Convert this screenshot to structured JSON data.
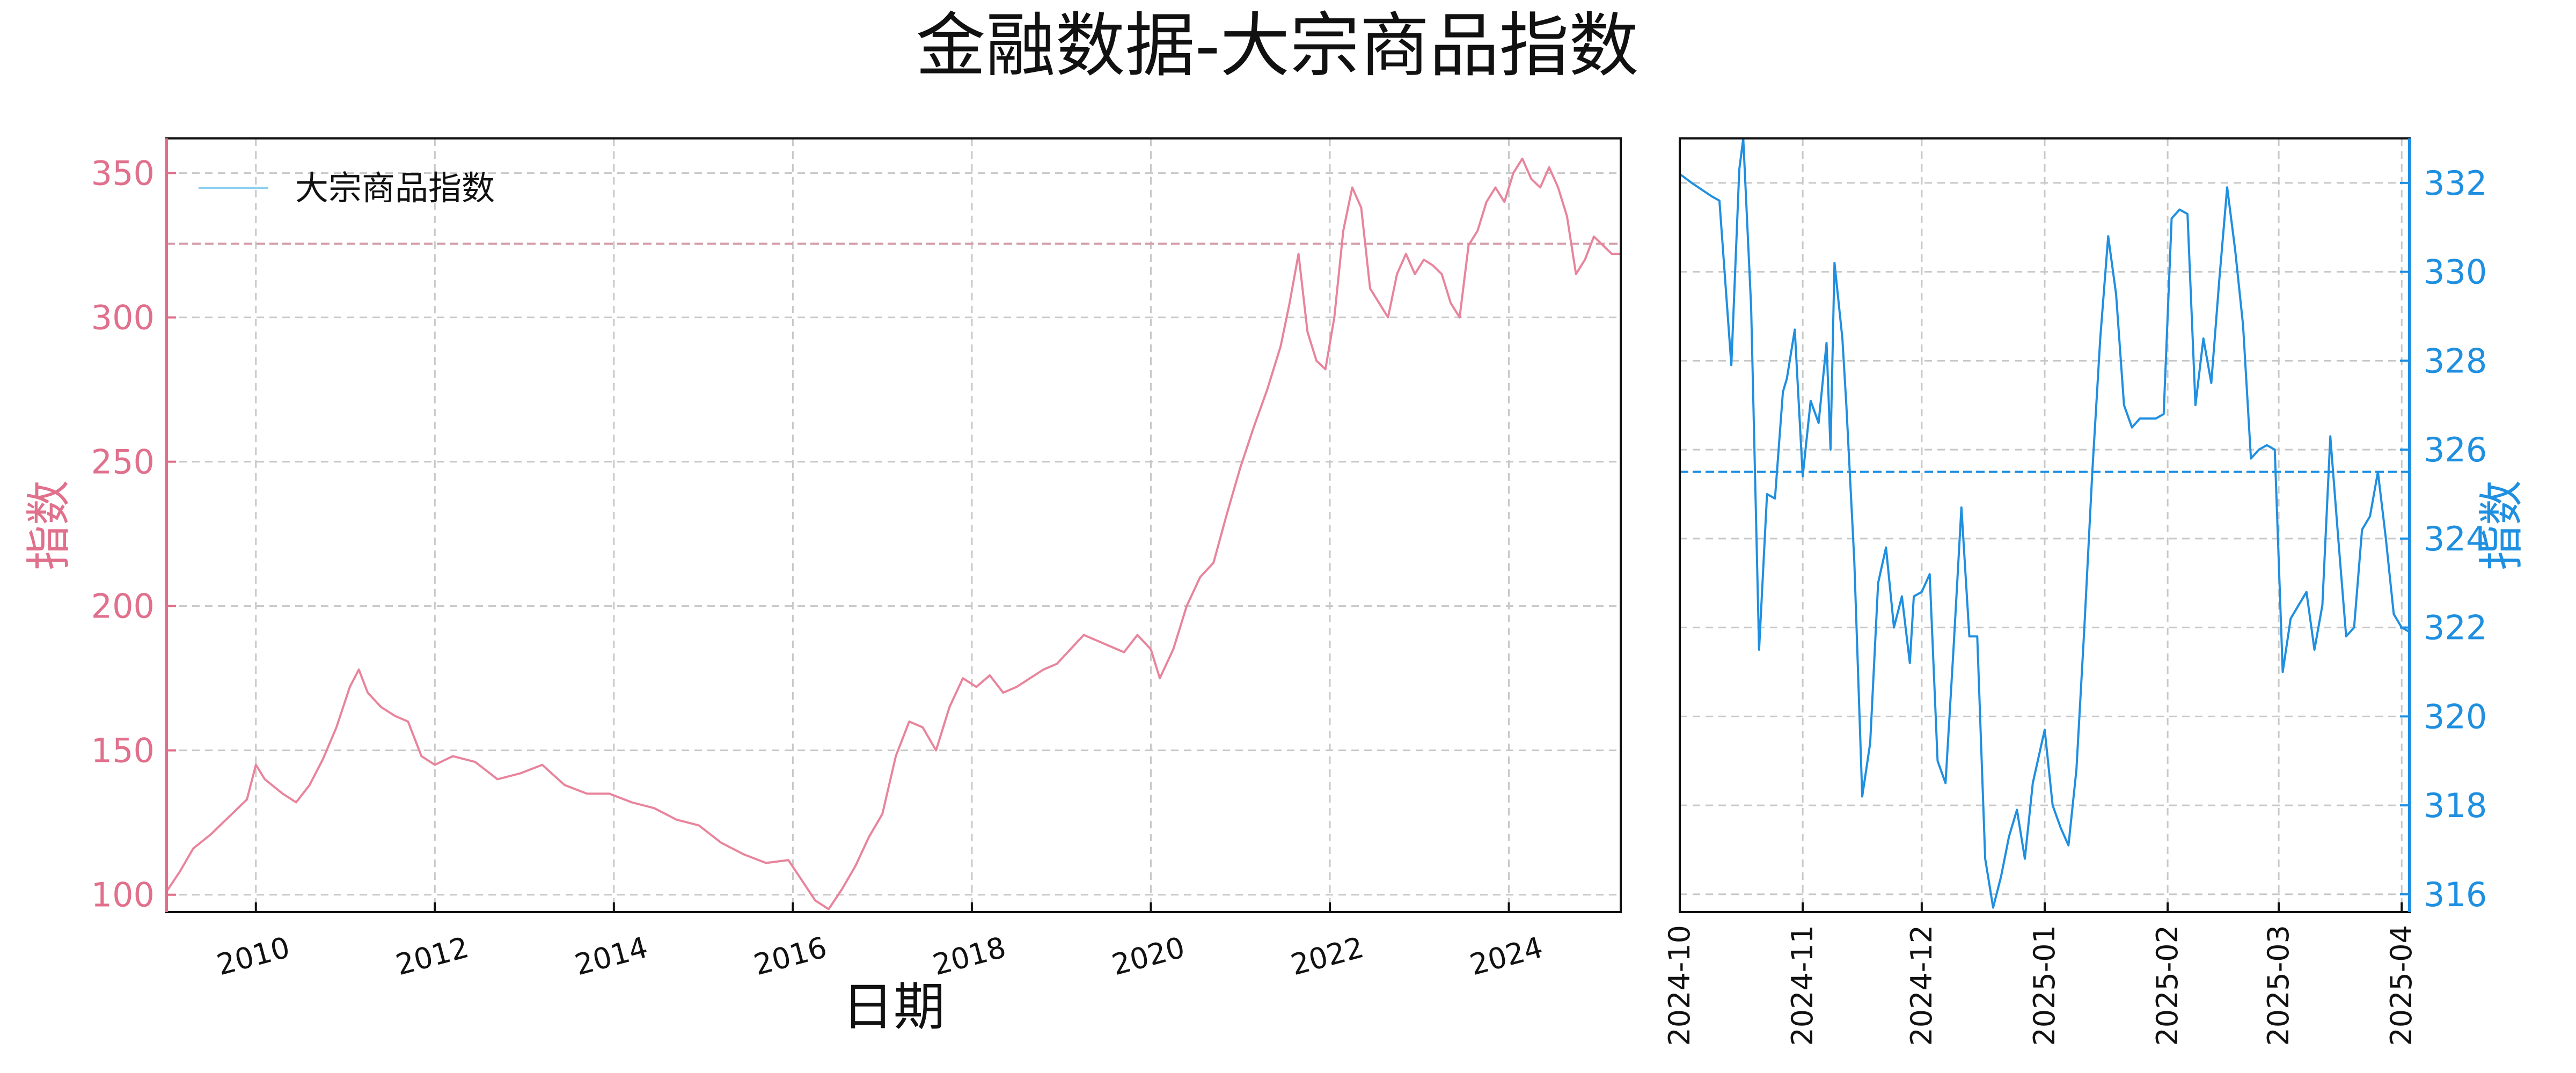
{
  "title": "金融数据-大宗商品指数",
  "colors": {
    "left_line": "#e8849c",
    "left_line_recent": "#f07050",
    "left_axis": "#e0708c",
    "right_line": "#1f8fe0",
    "right_axis": "#1f8fe0",
    "grid": "#c8c8c8",
    "legend_line": "#8ecff0"
  },
  "chart_data": [
    {
      "type": "line",
      "name_hint": "full-history",
      "xlabel": "日期",
      "ylabel": "指数",
      "xlim": [
        2009.0,
        2025.25
      ],
      "ylim": [
        94,
        362
      ],
      "xticks": [
        2010,
        2012,
        2014,
        2016,
        2018,
        2020,
        2022,
        2024
      ],
      "xtick_labels": [
        "2010",
        "2012",
        "2014",
        "2016",
        "2018",
        "2020",
        "2022",
        "2024"
      ],
      "yticks": [
        100,
        150,
        200,
        250,
        300,
        350
      ],
      "reference_line": 325.5,
      "grid": true,
      "legend_position": "top-left",
      "series": [
        {
          "name": "大宗商品指数",
          "x": [
            2009.0,
            2009.15,
            2009.3,
            2009.5,
            2009.7,
            2009.9,
            2010.0,
            2010.1,
            2010.3,
            2010.45,
            2010.6,
            2010.75,
            2010.9,
            2011.05,
            2011.15,
            2011.25,
            2011.4,
            2011.55,
            2011.7,
            2011.85,
            2012.0,
            2012.2,
            2012.45,
            2012.7,
            2012.95,
            2013.2,
            2013.45,
            2013.7,
            2013.95,
            2014.2,
            2014.45,
            2014.7,
            2014.95,
            2015.2,
            2015.45,
            2015.7,
            2015.95,
            2016.1,
            2016.25,
            2016.4,
            2016.55,
            2016.7,
            2016.85,
            2017.0,
            2017.15,
            2017.3,
            2017.45,
            2017.6,
            2017.75,
            2017.9,
            2018.05,
            2018.2,
            2018.35,
            2018.5,
            2018.65,
            2018.8,
            2018.95,
            2019.1,
            2019.25,
            2019.4,
            2019.55,
            2019.7,
            2019.85,
            2020.0,
            2020.1,
            2020.25,
            2020.4,
            2020.55,
            2020.7,
            2020.85,
            2021.0,
            2021.15,
            2021.3,
            2021.45,
            2021.55,
            2021.65,
            2021.75,
            2021.85,
            2021.95,
            2022.05,
            2022.15,
            2022.25,
            2022.35,
            2022.45,
            2022.55,
            2022.65,
            2022.75,
            2022.85,
            2022.95,
            2023.05,
            2023.15,
            2023.25,
            2023.35,
            2023.45,
            2023.55,
            2023.65,
            2023.75,
            2023.85,
            2023.95,
            2024.05,
            2024.15,
            2024.25,
            2024.35,
            2024.45,
            2024.55,
            2024.65,
            2024.75,
            2024.85,
            2024.95,
            2025.05,
            2025.15,
            2025.25
          ],
          "values": [
            101,
            108,
            116,
            121,
            127,
            133,
            145,
            140,
            135,
            132,
            138,
            147,
            158,
            172,
            178,
            170,
            165,
            162,
            160,
            148,
            145,
            148,
            146,
            140,
            142,
            145,
            138,
            135,
            135,
            132,
            130,
            126,
            124,
            118,
            114,
            111,
            112,
            105,
            98,
            95,
            102,
            110,
            120,
            128,
            148,
            160,
            158,
            150,
            165,
            175,
            172,
            176,
            170,
            172,
            175,
            178,
            180,
            185,
            190,
            188,
            186,
            184,
            190,
            185,
            175,
            185,
            200,
            210,
            215,
            232,
            248,
            262,
            275,
            290,
            305,
            322,
            295,
            285,
            282,
            300,
            330,
            345,
            338,
            310,
            305,
            300,
            315,
            322,
            315,
            320,
            318,
            315,
            305,
            300,
            325,
            330,
            340,
            345,
            340,
            350,
            355,
            348,
            345,
            352,
            345,
            335,
            315,
            320,
            328,
            325,
            322,
            322
          ]
        }
      ]
    },
    {
      "type": "line",
      "name_hint": "recent-zoom",
      "ylabel": "指数",
      "xlim": [
        "2024-10-01",
        "2025-04-03"
      ],
      "ylim": [
        315.6,
        333.0
      ],
      "xtick_labels": [
        "2024-10",
        "2024-11",
        "2024-12",
        "2025-01",
        "2025-02",
        "2025-03",
        "2025-04"
      ],
      "yticks": [
        316,
        318,
        320,
        322,
        324,
        326,
        328,
        330,
        332
      ],
      "reference_line": 325.5,
      "grid": true,
      "series": [
        {
          "x": [
            "2024-10-01",
            "2024-10-04",
            "2024-10-09",
            "2024-10-11",
            "2024-10-14",
            "2024-10-16",
            "2024-10-17",
            "2024-10-19",
            "2024-10-21",
            "2024-10-23",
            "2024-10-25",
            "2024-10-27",
            "2024-10-28",
            "2024-10-30",
            "2024-11-01",
            "2024-11-03",
            "2024-11-05",
            "2024-11-07",
            "2024-11-08",
            "2024-11-09",
            "2024-11-11",
            "2024-11-12",
            "2024-11-14",
            "2024-11-16",
            "2024-11-18",
            "2024-11-20",
            "2024-11-22",
            "2024-11-24",
            "2024-11-26",
            "2024-11-28",
            "2024-11-29",
            "2024-12-01",
            "2024-12-03",
            "2024-12-05",
            "2024-12-07",
            "2024-12-09",
            "2024-12-11",
            "2024-12-13",
            "2024-12-15",
            "2024-12-17",
            "2024-12-19",
            "2024-12-21",
            "2024-12-23",
            "2024-12-25",
            "2024-12-27",
            "2024-12-29",
            "2025-01-01",
            "2025-01-03",
            "2025-01-05",
            "2025-01-07",
            "2025-01-09",
            "2025-01-11",
            "2025-01-13",
            "2025-01-15",
            "2025-01-17",
            "2025-01-19",
            "2025-01-21",
            "2025-01-23",
            "2025-01-25",
            "2025-01-27",
            "2025-01-29",
            "2025-01-31",
            "2025-02-02",
            "2025-02-04",
            "2025-02-06",
            "2025-02-08",
            "2025-02-10",
            "2025-02-12",
            "2025-02-14",
            "2025-02-16",
            "2025-02-18",
            "2025-02-20",
            "2025-02-22",
            "2025-02-24",
            "2025-02-26",
            "2025-02-28",
            "2025-03-02",
            "2025-03-04",
            "2025-03-06",
            "2025-03-08",
            "2025-03-10",
            "2025-03-12",
            "2025-03-14",
            "2025-03-16",
            "2025-03-18",
            "2025-03-20",
            "2025-03-22",
            "2025-03-24",
            "2025-03-26",
            "2025-03-28",
            "2025-03-30",
            "2025-04-01",
            "2025-04-03"
          ],
          "values": [
            332.2,
            332.0,
            331.7,
            331.6,
            327.9,
            332.3,
            333.0,
            329.2,
            321.5,
            325.0,
            324.9,
            327.3,
            327.6,
            328.7,
            325.4,
            327.1,
            326.6,
            328.4,
            326.0,
            330.2,
            328.5,
            327.0,
            323.5,
            318.2,
            319.4,
            323.0,
            323.8,
            322.0,
            322.7,
            321.2,
            322.7,
            322.8,
            323.2,
            319.0,
            318.5,
            321.5,
            324.7,
            321.8,
            321.8,
            316.8,
            315.7,
            316.4,
            317.3,
            317.9,
            316.8,
            318.5,
            319.7,
            318.0,
            317.5,
            317.1,
            318.8,
            322.0,
            325.5,
            328.5,
            330.8,
            329.5,
            327.0,
            326.5,
            326.7,
            326.7,
            326.7,
            326.8,
            331.2,
            331.4,
            331.3,
            327.0,
            328.5,
            327.5,
            329.8,
            331.9,
            330.5,
            328.8,
            325.8,
            326.0,
            326.1,
            326.0,
            321.0,
            322.2,
            322.5,
            322.8,
            321.5,
            322.5,
            326.3,
            324.0,
            321.8,
            322.0,
            324.2,
            324.5,
            325.5,
            324.0,
            322.3,
            322.0,
            321.9
          ]
        }
      ]
    }
  ]
}
